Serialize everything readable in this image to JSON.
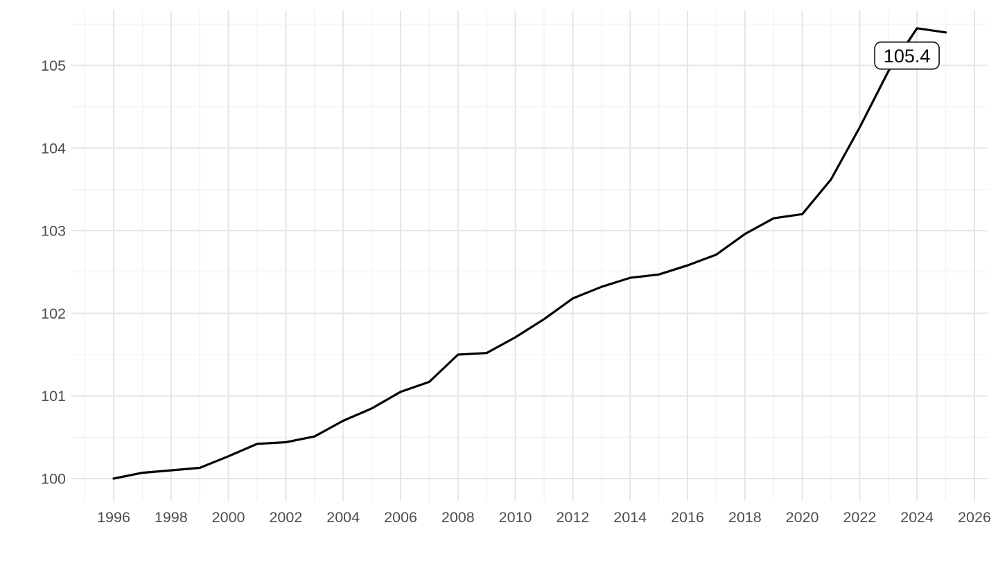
{
  "chart_data": {
    "type": "line",
    "title": "",
    "xlabel": "",
    "ylabel": "",
    "legend": "none",
    "grid": "major and minor gridlines, light gray on white (ggplot-minimal style)",
    "x": [
      1996,
      1997,
      1998,
      1999,
      2000,
      2001,
      2002,
      2003,
      2004,
      2005,
      2006,
      2007,
      2008,
      2009,
      2010,
      2011,
      2012,
      2013,
      2014,
      2015,
      2016,
      2017,
      2018,
      2019,
      2020,
      2021,
      2022,
      2023,
      2024,
      2025
    ],
    "values": [
      100.0,
      100.07,
      100.1,
      100.13,
      100.27,
      100.42,
      100.44,
      100.51,
      100.7,
      100.85,
      101.05,
      101.17,
      101.5,
      101.52,
      101.71,
      101.93,
      102.18,
      102.32,
      102.43,
      102.47,
      102.58,
      102.71,
      102.96,
      103.15,
      103.2,
      103.62,
      104.25,
      104.93,
      105.45,
      105.4
    ],
    "x_ticks": [
      1996,
      1998,
      2000,
      2002,
      2004,
      2006,
      2008,
      2010,
      2012,
      2014,
      2016,
      2018,
      2020,
      2022,
      2024,
      2026
    ],
    "x_tick_labels": [
      "1996",
      "1998",
      "2000",
      "2002",
      "2004",
      "2006",
      "2008",
      "2010",
      "2012",
      "2014",
      "2016",
      "2018",
      "2020",
      "2022",
      "2024",
      "2026"
    ],
    "y_ticks": [
      100,
      101,
      102,
      103,
      104,
      105
    ],
    "y_tick_labels": [
      "100",
      "101",
      "102",
      "103",
      "104",
      "105"
    ],
    "xlim": [
      1994.55,
      2026.45
    ],
    "ylim": [
      99.73,
      105.67
    ],
    "annotation": {
      "text": "105.4",
      "anchor_x": 2025,
      "anchor_y": 105.4
    }
  },
  "styles": {
    "background": "#FFFFFF",
    "line_color": "#000000",
    "grid_major_color": "#E5E5E5",
    "grid_minor_color": "#F0F0F0",
    "tick_label_color": "#4D4D4D",
    "annotation_text_color": "#000000",
    "annotation_border_color": "#1A1A1A",
    "annotation_fill": "#FFFFFF"
  }
}
